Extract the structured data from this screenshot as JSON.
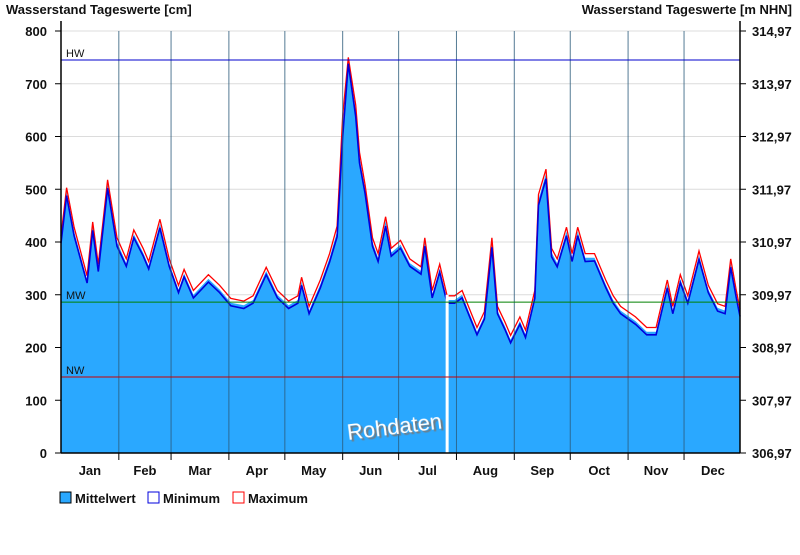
{
  "chart_data": {
    "type": "area",
    "title_left": "Wasserstand Tageswerte [cm]",
    "title_right": "Wasserstand Tageswerte [m NHN]",
    "ylim": [
      0,
      800
    ],
    "y_ticks": [
      "0",
      "100",
      "200",
      "300",
      "400",
      "500",
      "600",
      "700",
      "800"
    ],
    "y2_ticks": [
      "306,97",
      "307,97",
      "308,97",
      "309,97",
      "310,97",
      "311,97",
      "312,97",
      "313,97",
      "314,97"
    ],
    "months": [
      "Jan",
      "Feb",
      "Mar",
      "Apr",
      "May",
      "Jun",
      "Jul",
      "Aug",
      "Sep",
      "Oct",
      "Nov",
      "Dec"
    ],
    "grid": true,
    "reference_lines": [
      {
        "label": "HW",
        "value": 745,
        "color": "#0000cc"
      },
      {
        "label": "MW",
        "value": 286,
        "color": "#008000"
      },
      {
        "label": "NW",
        "value": 144,
        "color": "#cc0000"
      }
    ],
    "watermark": "Rohdaten",
    "gap_day": 208,
    "days": [
      1,
      4,
      8,
      15,
      18,
      21,
      26,
      31,
      36,
      40,
      45,
      48,
      54,
      59,
      64,
      67,
      72,
      80,
      86,
      92,
      99,
      104,
      111,
      117,
      123,
      128,
      130,
      134,
      140,
      145,
      149,
      152,
      155,
      159,
      161,
      164,
      168,
      171,
      175,
      178,
      183,
      188,
      194,
      196,
      200,
      204,
      208,
      212,
      216,
      220,
      224,
      228,
      232,
      235,
      239,
      242,
      247,
      250,
      255,
      257,
      261,
      264,
      267,
      272,
      275,
      278,
      282,
      287,
      293,
      297,
      301,
      309,
      315,
      320,
      326,
      329,
      333,
      337,
      343,
      348,
      353,
      357,
      360,
      363,
      365
    ],
    "series": [
      {
        "name": "Mittelwert",
        "color": "#2aa8ff",
        "values": [
          404,
          495,
          420,
          328,
          430,
          350,
          510,
          400,
          360,
          415,
          380,
          355,
          435,
          360,
          310,
          340,
          300,
          330,
          310,
          285,
          280,
          290,
          345,
          300,
          280,
          290,
          325,
          270,
          320,
          370,
          420,
          620,
          745,
          650,
          560,
          500,
          400,
          370,
          440,
          380,
          395,
          360,
          345,
          400,
          300,
          350,
          290,
          290,
          300,
          265,
          230,
          260,
          400,
          270,
          240,
          215,
          250,
          225,
          300,
          480,
          530,
          380,
          360,
          420,
          370,
          420,
          370,
          370,
          320,
          290,
          270,
          250,
          230,
          230,
          320,
          270,
          330,
          290,
          375,
          310,
          275,
          270,
          360,
          300,
          265
        ]
      },
      {
        "name": "Minimum",
        "color": "#0000dd",
        "values": [
          398,
          488,
          412,
          322,
          422,
          344,
          502,
          392,
          354,
          408,
          374,
          349,
          427,
          354,
          304,
          334,
          294,
          324,
          304,
          279,
          274,
          284,
          338,
          294,
          274,
          284,
          318,
          264,
          313,
          362,
          410,
          600,
          738,
          638,
          550,
          492,
          392,
          363,
          430,
          373,
          388,
          354,
          339,
          392,
          294,
          343,
          284,
          284,
          294,
          259,
          224,
          254,
          390,
          264,
          234,
          209,
          244,
          219,
          293,
          470,
          520,
          372,
          353,
          412,
          363,
          412,
          363,
          364,
          314,
          284,
          264,
          244,
          224,
          224,
          313,
          264,
          323,
          284,
          367,
          304,
          269,
          264,
          352,
          294,
          259
        ]
      },
      {
        "name": "Maximum",
        "color": "#ff0000",
        "values": [
          412,
          503,
          428,
          336,
          438,
          358,
          518,
          408,
          368,
          423,
          388,
          363,
          443,
          368,
          318,
          348,
          308,
          338,
          318,
          293,
          288,
          298,
          352,
          308,
          288,
          298,
          333,
          278,
          328,
          378,
          430,
          640,
          750,
          660,
          570,
          508,
          408,
          378,
          448,
          388,
          403,
          368,
          353,
          408,
          308,
          358,
          298,
          298,
          308,
          273,
          238,
          268,
          408,
          278,
          248,
          223,
          258,
          233,
          308,
          490,
          538,
          388,
          368,
          428,
          378,
          428,
          378,
          378,
          328,
          298,
          278,
          258,
          238,
          238,
          328,
          278,
          338,
          298,
          383,
          318,
          283,
          278,
          368,
          308,
          273
        ]
      }
    ]
  }
}
